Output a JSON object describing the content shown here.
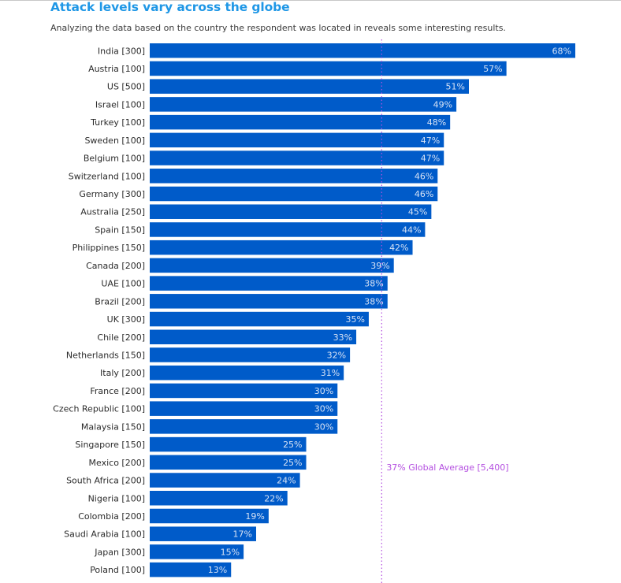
{
  "header": {
    "title": "Attack levels vary across the globe",
    "subtitle": "Analyzing the data based on the country the respondent was located in reveals some interesting results."
  },
  "chart_data": {
    "type": "bar",
    "orientation": "horizontal",
    "title": "Attack levels vary across the globe",
    "subtitle": "Analyzing the data based on the country the respondent was located in reveals some interesting results.",
    "xlabel": "",
    "ylabel": "",
    "unit": "%",
    "xlim": [
      0,
      68
    ],
    "grid": false,
    "bar_color": "#005bc9",
    "categories": [
      "India [300]",
      "Austria [100]",
      "US [500]",
      "Israel [100]",
      "Turkey [100]",
      "Sweden [100]",
      "Belgium [100]",
      "Switzerland [100]",
      "Germany [300]",
      "Australia [250]",
      "Spain [150]",
      "Philippines [150]",
      "Canada [200]",
      "UAE [100]",
      "Brazil [200]",
      "UK [300]",
      "Chile [200]",
      "Netherlands [150]",
      "Italy [200]",
      "France [200]",
      "Czech Republic [100]",
      "Malaysia [150]",
      "Singapore [150]",
      "Mexico [200]",
      "South Africa [200]",
      "Nigeria [100]",
      "Colombia [200]",
      "Saudi Arabia [100]",
      "Japan [300]",
      "Poland [100]"
    ],
    "values": [
      68,
      57,
      51,
      49,
      48,
      47,
      47,
      46,
      46,
      45,
      44,
      42,
      39,
      38,
      38,
      35,
      33,
      32,
      31,
      30,
      30,
      30,
      25,
      25,
      24,
      22,
      19,
      17,
      15,
      13
    ],
    "value_labels": [
      "68%",
      "57%",
      "51%",
      "49%",
      "48%",
      "47%",
      "47%",
      "46%",
      "46%",
      "45%",
      "44%",
      "42%",
      "39%",
      "38%",
      "38%",
      "35%",
      "33%",
      "32%",
      "31%",
      "30%",
      "30%",
      "30%",
      "25%",
      "25%",
      "24%",
      "22%",
      "19%",
      "17%",
      "15%",
      "13%"
    ],
    "reference_line": {
      "value": 37,
      "label": "37% Global Average [5,400]",
      "color": "#b44fe0",
      "style": "dotted"
    }
  }
}
